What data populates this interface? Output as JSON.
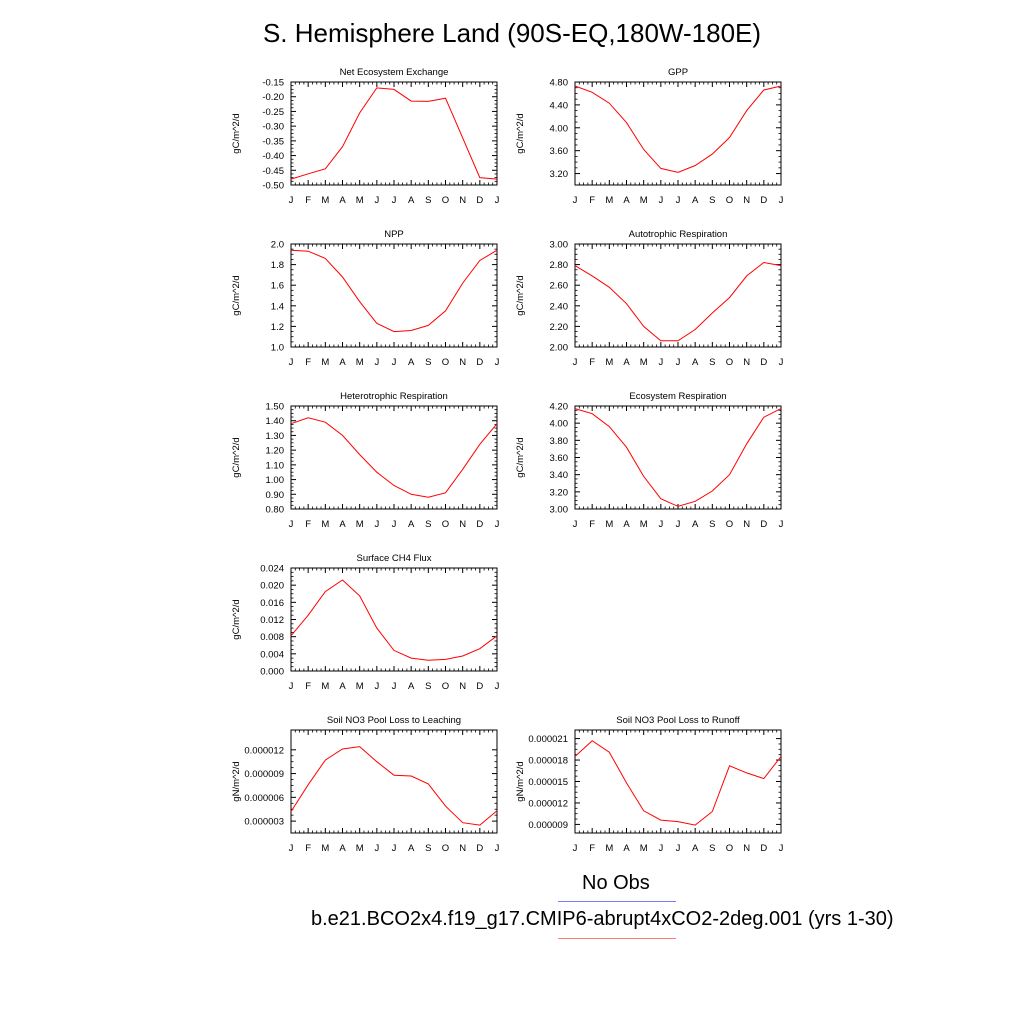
{
  "title": "S. Hemisphere Land (90S-EQ,180W-180E)",
  "legend": {
    "obs_label": "No Obs",
    "obs_color": "#7b7bff",
    "model_label": "b.e21.BCO2x4.f19_g17.CMIP6-abrupt4xCO2-2deg.001 (yrs 1-30)",
    "model_color": "#ff7b7b"
  },
  "line_color": "#ff0000",
  "chart_data": [
    {
      "type": "line",
      "title": "Net Ecosystem Exchange",
      "ylabel": "gC/m^2/d",
      "x": [
        "J",
        "F",
        "M",
        "A",
        "M",
        "J",
        "J",
        "A",
        "S",
        "O",
        "N",
        "D",
        "J"
      ],
      "ylim": [
        -0.5,
        -0.15
      ],
      "yticks": [
        "-0.15",
        "-0.20",
        "-0.25",
        "-0.30",
        "-0.35",
        "-0.40",
        "-0.45",
        "-0.50"
      ],
      "series": [
        {
          "values": [
            -0.48,
            -0.462,
            -0.445,
            -0.37,
            -0.255,
            -0.17,
            -0.175,
            -0.215,
            -0.216,
            -0.205,
            -0.34,
            -0.475,
            -0.48
          ]
        }
      ]
    },
    {
      "type": "line",
      "title": "GPP",
      "ylabel": "gC/m^2/d",
      "x": [
        "J",
        "F",
        "M",
        "A",
        "M",
        "J",
        "J",
        "A",
        "S",
        "O",
        "N",
        "D",
        "J"
      ],
      "ylim": [
        3.0,
        4.8
      ],
      "yticks": [
        "4.80",
        "4.40",
        "4.00",
        "3.60",
        "3.20"
      ],
      "series": [
        {
          "values": [
            4.73,
            4.62,
            4.43,
            4.09,
            3.62,
            3.29,
            3.22,
            3.34,
            3.54,
            3.83,
            4.3,
            4.66,
            4.73
          ]
        }
      ]
    },
    {
      "type": "line",
      "title": "NPP",
      "ylabel": "gC/m^2/d",
      "x": [
        "J",
        "F",
        "M",
        "A",
        "M",
        "J",
        "J",
        "A",
        "S",
        "O",
        "N",
        "D",
        "J"
      ],
      "ylim": [
        1.0,
        2.0
      ],
      "yticks": [
        "2.0",
        "1.8",
        "1.6",
        "1.4",
        "1.2",
        "1.0"
      ],
      "series": [
        {
          "values": [
            1.94,
            1.93,
            1.86,
            1.68,
            1.44,
            1.23,
            1.15,
            1.16,
            1.21,
            1.35,
            1.62,
            1.84,
            1.94
          ]
        }
      ]
    },
    {
      "type": "line",
      "title": "Autotrophic Respiration",
      "ylabel": "gC/m^2/d",
      "x": [
        "J",
        "F",
        "M",
        "A",
        "M",
        "J",
        "J",
        "A",
        "S",
        "O",
        "N",
        "D",
        "J"
      ],
      "ylim": [
        2.0,
        3.0
      ],
      "yticks": [
        "3.00",
        "2.80",
        "2.60",
        "2.40",
        "2.20",
        "2.00"
      ],
      "series": [
        {
          "values": [
            2.79,
            2.69,
            2.58,
            2.42,
            2.2,
            2.06,
            2.06,
            2.17,
            2.33,
            2.48,
            2.69,
            2.82,
            2.79
          ]
        }
      ]
    },
    {
      "type": "line",
      "title": "Heterotrophic Respiration",
      "ylabel": "gC/m^2/d",
      "x": [
        "J",
        "F",
        "M",
        "A",
        "M",
        "J",
        "J",
        "A",
        "S",
        "O",
        "N",
        "D",
        "J"
      ],
      "ylim": [
        0.8,
        1.5
      ],
      "yticks": [
        "1.50",
        "1.40",
        "1.30",
        "1.20",
        "1.10",
        "1.00",
        "0.90",
        "0.80"
      ],
      "series": [
        {
          "values": [
            1.38,
            1.42,
            1.39,
            1.3,
            1.17,
            1.05,
            0.96,
            0.9,
            0.88,
            0.91,
            1.07,
            1.24,
            1.38
          ]
        }
      ]
    },
    {
      "type": "line",
      "title": "Ecosystem Respiration",
      "ylabel": "gC/m^2/d",
      "x": [
        "J",
        "F",
        "M",
        "A",
        "M",
        "J",
        "J",
        "A",
        "S",
        "O",
        "N",
        "D",
        "J"
      ],
      "ylim": [
        3.0,
        4.2
      ],
      "yticks": [
        "4.20",
        "4.00",
        "3.80",
        "3.60",
        "3.40",
        "3.20",
        "3.00"
      ],
      "series": [
        {
          "values": [
            4.17,
            4.11,
            3.96,
            3.72,
            3.38,
            3.12,
            3.03,
            3.09,
            3.21,
            3.4,
            3.76,
            4.07,
            4.17
          ]
        }
      ]
    },
    {
      "type": "line",
      "title": "Surface CH4 Flux",
      "ylabel": "gC/m^2/d",
      "x": [
        "J",
        "F",
        "M",
        "A",
        "M",
        "J",
        "J",
        "A",
        "S",
        "O",
        "N",
        "D",
        "J"
      ],
      "ylim": [
        0.0,
        0.024
      ],
      "yticks": [
        "0.024",
        "0.020",
        "0.016",
        "0.012",
        "0.008",
        "0.004",
        "0.000"
      ],
      "series": [
        {
          "values": [
            0.0082,
            0.013,
            0.0185,
            0.0212,
            0.0175,
            0.01,
            0.0048,
            0.003,
            0.0025,
            0.0027,
            0.0035,
            0.0052,
            0.0082
          ]
        }
      ]
    },
    {
      "type": "line",
      "title": "Soil NO3 Pool Loss to Leaching",
      "ylabel": "gN/m^2/d",
      "x": [
        "J",
        "F",
        "M",
        "A",
        "M",
        "J",
        "J",
        "A",
        "S",
        "O",
        "N",
        "D",
        "J"
      ],
      "ylim": [
        1.5e-06,
        1.45e-05
      ],
      "yticks": [
        "0.000012",
        "0.000009",
        "0.000006",
        "0.000003"
      ],
      "series": [
        {
          "values": [
            4.2e-06,
            7.6e-06,
            1.07e-05,
            1.21e-05,
            1.24e-05,
            1.05e-05,
            8.8e-06,
            8.7e-06,
            7.7e-06,
            4.9e-06,
            2.8e-06,
            2.5e-06,
            4.3e-06
          ]
        }
      ]
    },
    {
      "type": "line",
      "title": "Soil NO3 Pool Loss to Runoff",
      "ylabel": "gN/m^2/d",
      "x": [
        "J",
        "F",
        "M",
        "A",
        "M",
        "J",
        "J",
        "A",
        "S",
        "O",
        "N",
        "D",
        "J"
      ],
      "ylim": [
        7.8e-06,
        2.22e-05
      ],
      "yticks": [
        "0.000021",
        "0.000018",
        "0.000015",
        "0.000012",
        "0.000009"
      ],
      "series": [
        {
          "values": [
            1.85e-05,
            2.07e-05,
            1.91e-05,
            1.48e-05,
            1.09e-05,
            9.6e-06,
            9.4e-06,
            8.9e-06,
            1.08e-05,
            1.72e-05,
            1.62e-05,
            1.54e-05,
            1.85e-05
          ]
        }
      ]
    }
  ]
}
